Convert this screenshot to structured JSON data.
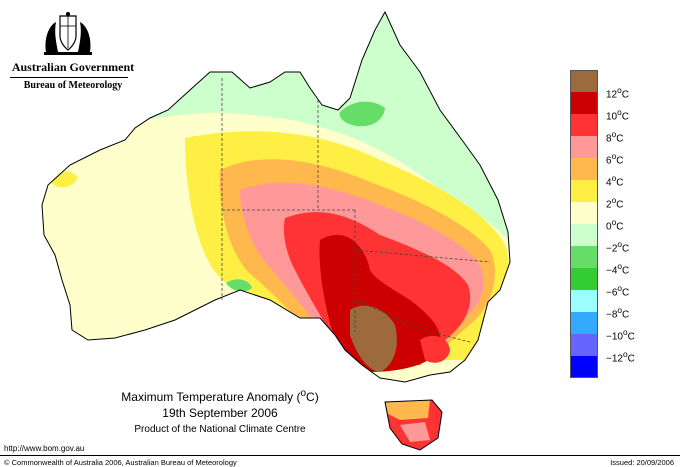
{
  "header": {
    "government": "Australian Government",
    "bureau": "Bureau of Meteorology",
    "crest_icon": "commonwealth-coat-of-arms"
  },
  "map": {
    "title_prefix": "Maximum Temperature Anomaly (",
    "title_unit": "o",
    "title_suffix": "C)",
    "date": "19th September 2006",
    "product": "Product of the National Climate Centre",
    "border_color": "#000000"
  },
  "legend": {
    "items": [
      {
        "value": "12",
        "unit": "C",
        "color": "#9c6a3c"
      },
      {
        "value": "10",
        "unit": "C",
        "color": "#cc0000"
      },
      {
        "value": "8",
        "unit": "C",
        "color": "#ff3333"
      },
      {
        "value": "6",
        "unit": "C",
        "color": "#ff9999"
      },
      {
        "value": "4",
        "unit": "C",
        "color": "#ffb84d"
      },
      {
        "value": "2",
        "unit": "C",
        "color": "#ffee44"
      },
      {
        "value": "0",
        "unit": "C",
        "color": "#ffffcc"
      },
      {
        "value": "−2",
        "unit": "C",
        "color": "#ccffcc"
      },
      {
        "value": "−4",
        "unit": "C",
        "color": "#66dd66"
      },
      {
        "value": "−6",
        "unit": "C",
        "color": "#33cc33"
      },
      {
        "value": "−8",
        "unit": "C",
        "color": "#99ffff"
      },
      {
        "value": "−10",
        "unit": "C",
        "color": "#33aaff"
      },
      {
        "value": "−12",
        "unit": "C",
        "color": "#6666ff"
      },
      {
        "value": "",
        "unit": "",
        "color": "#0000ff"
      }
    ]
  },
  "footer": {
    "url": "http://www.bom.gov.au",
    "copyright": "© Commonwealth of Australia 2006, Australian Bureau of Meteorology",
    "issued": "Issued: 20/09/2006"
  }
}
